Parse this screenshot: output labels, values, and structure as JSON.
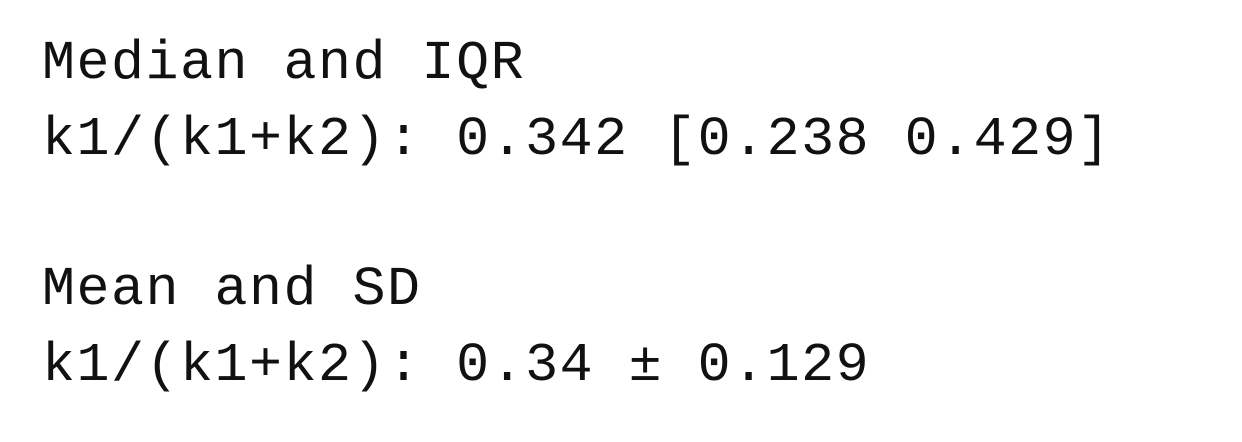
{
  "median_section": {
    "heading": "Median and IQR",
    "result": "k1/(k1+k2): 0.342 [0.238 0.429]"
  },
  "mean_section": {
    "heading": "Mean and SD",
    "result": "k1/(k1+k2): 0.34 ± 0.129"
  }
}
